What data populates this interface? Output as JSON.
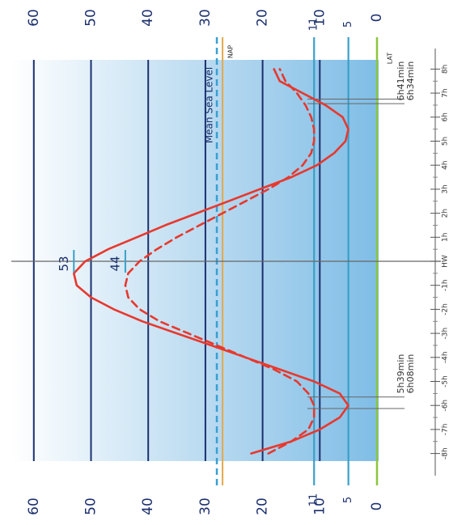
{
  "chart_data": {
    "type": "line",
    "title": "",
    "xlabel": "",
    "ylabel": "",
    "x_tick_labels": [
      "-8h",
      "-7h",
      "-6h",
      "-5h",
      "-4h",
      "-3h",
      "-2h",
      "-1h",
      "HW",
      "1h",
      "2h",
      "3h",
      "4h",
      "5h",
      "6h",
      "7h",
      "8h"
    ],
    "y_tick_labels": [
      "0",
      "10",
      "20",
      "30",
      "40",
      "50",
      "60"
    ],
    "ylim": [
      0,
      60
    ],
    "xlim": [
      -8.5,
      8.5
    ],
    "grid_levels": [
      10,
      20,
      30,
      40,
      50,
      60
    ],
    "mean_sea_level": 28,
    "nap_level": 27,
    "lat_level": 0,
    "reference_lines": [
      {
        "label": "5",
        "value": 5
      },
      {
        "label": "11",
        "value": 11
      }
    ],
    "reference_labels": {
      "msl": "Mean Sea Level",
      "nap": "NAP",
      "lat": "LAT"
    },
    "high_water_labels": [
      {
        "label": "53",
        "value": 53
      },
      {
        "label": "44",
        "value": 44
      }
    ],
    "duration_labels": [
      {
        "text": "6h41min",
        "side": "after"
      },
      {
        "text": "6h34min",
        "side": "after"
      },
      {
        "text": "5h39min",
        "side": "before"
      },
      {
        "text": "6h08min",
        "side": "before"
      }
    ],
    "series": [
      {
        "style": "solid",
        "color": "#e8382d",
        "x": [
          -8,
          -7.5,
          -7,
          -6.5,
          -6,
          -5.5,
          -5,
          -4.5,
          -4,
          -3.5,
          -3,
          -2.5,
          -2,
          -1.5,
          -1,
          -0.5,
          0,
          0.5,
          1,
          1.5,
          2,
          2.5,
          3,
          3.5,
          4,
          4.5,
          5,
          5.5,
          6,
          6.5,
          7,
          7.5,
          8
        ],
        "values": [
          22,
          15,
          10,
          6.5,
          5,
          6.5,
          11,
          17,
          23,
          29,
          35,
          41,
          46,
          50,
          52.5,
          53,
          51,
          47,
          42,
          37,
          31.5,
          26,
          20.5,
          15,
          10.5,
          7.5,
          5.5,
          5,
          6,
          9,
          13,
          17,
          18
        ]
      },
      {
        "style": "dashed",
        "color": "#e8382d",
        "x": [
          -8,
          -7.5,
          -7,
          -6.5,
          -6,
          -5.5,
          -5,
          -4.5,
          -4,
          -3.5,
          -3,
          -2.5,
          -2,
          -1.5,
          -1,
          -0.5,
          0,
          0.5,
          1,
          1.5,
          2,
          2.5,
          3,
          3.5,
          4,
          4.5,
          5,
          5.5,
          6,
          6.5,
          7,
          7.5,
          8
        ],
        "values": [
          19,
          15,
          12,
          11,
          11,
          12,
          14,
          18,
          23,
          28,
          33,
          38,
          41.5,
          43.5,
          44,
          43.5,
          41.5,
          38.5,
          35,
          31,
          27,
          23,
          19,
          15.5,
          13,
          11.5,
          11,
          11,
          11.5,
          12.5,
          14,
          16,
          17
        ]
      }
    ],
    "colors": {
      "grid": "#1b2f6e",
      "msl": "#3a9fd2",
      "nap": "#e3a94a",
      "lat": "#8dc63f",
      "ref": "#3aa0c8",
      "tide": "#e8382d"
    }
  }
}
